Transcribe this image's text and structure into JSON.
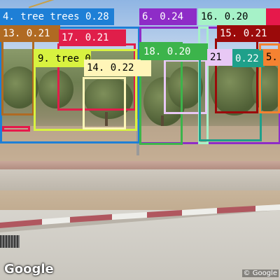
{
  "watermark": {
    "logo_text": "Google",
    "credit_text": "© Google"
  },
  "detections": [
    {
      "label": "4. tree trees 0.28",
      "color": "#1e7fd6"
    },
    {
      "label": "6.  0.24",
      "color": "#8e2cc7"
    },
    {
      "label": "16.  0.20",
      "color": "#a6f2c8"
    },
    {
      "label": "13.  0.21",
      "color": "#b06a22"
    },
    {
      "label": "17.  0.21",
      "color": "#e01e4a"
    },
    {
      "label": "15.  0.21",
      "color": "#9b0a0a"
    },
    {
      "label": "9.  tree 0.25",
      "color": "#d8f240"
    },
    {
      "label": "14.  0.22",
      "color": "#fff5b8"
    },
    {
      "label": "18.  0.20",
      "color": "#3cb44b"
    },
    {
      "label": "21",
      "color": "#e8c8f5"
    },
    {
      "label": "0.22",
      "color": "#1fa08a"
    },
    {
      "label": "5.",
      "color": "#f58231"
    },
    {
      "label": "",
      "color": "#e6194b"
    }
  ]
}
